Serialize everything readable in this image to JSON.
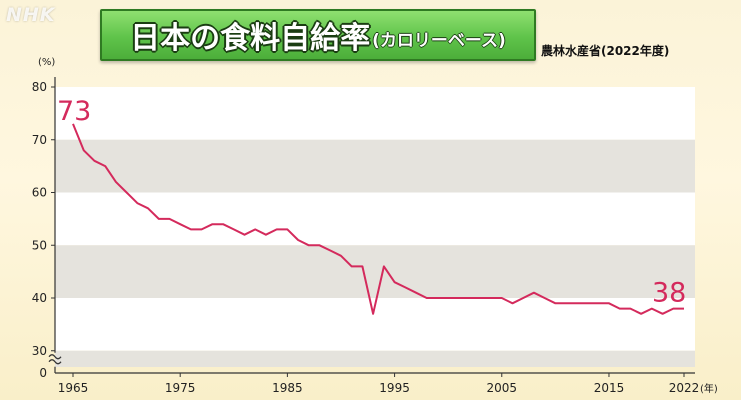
{
  "logo": "NHK",
  "title": {
    "main": "日本の食料自給率",
    "sub": "(カロリーベース)"
  },
  "source": "農林水産省(2022年度)",
  "colors": {
    "line": "#d42a5c",
    "band_gray": "#e5e3dd",
    "band_white": "#ffffff",
    "title_green": "#5fc34a"
  },
  "chart_data": {
    "type": "line",
    "title": "日本の食料自給率(カロリーベース)",
    "ylabel": "(%)",
    "xlabel": "(年)",
    "ylim": [
      30,
      80
    ],
    "y_ticks": [
      "80",
      "70",
      "60",
      "50",
      "40",
      "30"
    ],
    "y_zero_label": "0",
    "axis_break": true,
    "xlim": [
      1965,
      2022
    ],
    "x_ticks": [
      "1965",
      "1975",
      "1985",
      "1995",
      "2005",
      "2015",
      "2022"
    ],
    "x_unit": "(年)",
    "grid": "alternating horizontal bands",
    "callouts": {
      "start": "73",
      "end": "38"
    },
    "series": [
      {
        "x": [
          1965,
          1966,
          1967,
          1968,
          1969,
          1970,
          1971,
          1972,
          1973,
          1974,
          1975,
          1976,
          1977,
          1978,
          1979,
          1980,
          1981,
          1982,
          1983,
          1984,
          1985,
          1986,
          1987,
          1988,
          1989,
          1990,
          1991,
          1992,
          1993,
          1994,
          1995,
          1996,
          1997,
          1998,
          1999,
          2000,
          2001,
          2002,
          2003,
          2004,
          2005,
          2006,
          2007,
          2008,
          2009,
          2010,
          2011,
          2012,
          2013,
          2014,
          2015,
          2016,
          2017,
          2018,
          2019,
          2020,
          2021,
          2022
        ],
        "values": [
          73,
          68,
          66,
          65,
          62,
          60,
          58,
          57,
          55,
          55,
          54,
          53,
          53,
          54,
          54,
          53,
          52,
          53,
          52,
          53,
          53,
          51,
          50,
          50,
          49,
          48,
          46,
          46,
          37,
          46,
          43,
          42,
          41,
          40,
          40,
          40,
          40,
          40,
          40,
          40,
          40,
          39,
          40,
          41,
          40,
          39,
          39,
          39,
          39,
          39,
          39,
          38,
          38,
          37,
          38,
          37,
          38,
          38
        ]
      }
    ]
  }
}
